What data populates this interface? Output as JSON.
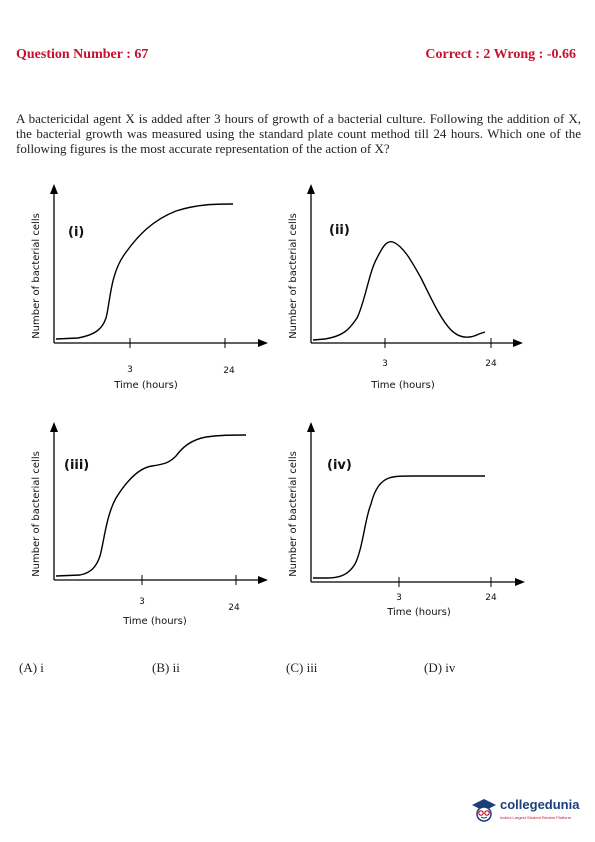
{
  "header": {
    "question_number": "Question Number : 67",
    "marks": "Correct : 2  Wrong : -0.66"
  },
  "question": {
    "text": "A bactericidal agent X is added after 3 hours of growth of a bacterial culture. Following the addition of X, the bacterial growth was measured using the standard plate count method till 24 hours. Which one of the following figures is the most accurate representation of the action of X?"
  },
  "graphs": {
    "ylabel": "Number of bacterial cells",
    "xlabel": "Time (hours)",
    "tick_3": "3",
    "tick_24": "24",
    "g1_label": "(i)",
    "g2_label": "(ii)",
    "g3_label": "(iii)",
    "g4_label": "(iv)"
  },
  "options": {
    "a": "(A) i",
    "b": "(B) ii",
    "c": "(C) iii",
    "d": "(D) iv"
  },
  "brand": {
    "name": "collegedunia",
    "tagline": "India's Largest Student Review Platform",
    "icon": "graduation-cap-face-icon"
  }
}
